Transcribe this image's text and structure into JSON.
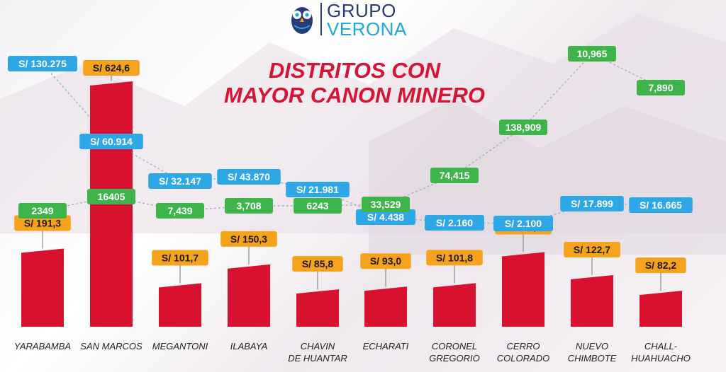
{
  "logo": {
    "line1": "GRUPO",
    "line2": "VERONA"
  },
  "title": {
    "line1": "DISTRITOS CON",
    "line2": "MAYOR CANON MINERO"
  },
  "colors": {
    "bar": "#d8122e",
    "bar_top": "#c4c4c4",
    "orange": "#f5a21c",
    "blue": "#2ea7e6",
    "green": "#3db54a",
    "title": "#d41535"
  },
  "chart_data": {
    "type": "bar",
    "categories": [
      [
        "YARABAMBA"
      ],
      [
        "SAN MARCOS"
      ],
      [
        "MEGANTONI"
      ],
      [
        "ILABAYA"
      ],
      [
        "CHAVIN",
        "DE HUANTAR"
      ],
      [
        "ECHARATI"
      ],
      [
        "CORONEL",
        "GREGORIO"
      ],
      [
        "CERRO",
        "COLORADO"
      ],
      [
        "NUEVO",
        "CHIMBOTE"
      ],
      [
        "CHALL-",
        "HUAHUACHO"
      ]
    ],
    "values": [
      191.3,
      624.6,
      101.7,
      150.3,
      85.8,
      93.0,
      101.8,
      182.3,
      122.7,
      82.2
    ],
    "value_labels": [
      "S/ 191,3",
      "S/ 624,6",
      "S/ 101,7",
      "S/ 150,3",
      "S/ 85,8",
      "S/ 93,0",
      "S/ 101,8",
      "S/ 182,3",
      "S/ 122,7",
      "S/ 82,2"
    ],
    "blue_labels": [
      "S/ 130.275",
      "S/ 60.914",
      "S/ 32.147",
      "S/ 43.870",
      "S/ 21.981",
      "S/ 4.438",
      "S/ 2.160",
      "S/ 2.100",
      "S/ 17.899",
      "S/ 16.665"
    ],
    "blue_values": [
      130275,
      60914,
      32147,
      43870,
      21981,
      4438,
      2160,
      2100,
      17899,
      16665
    ],
    "green_labels": [
      "2349",
      "16405",
      "7,439",
      "3,708",
      "6243",
      "33,529",
      "74,415",
      "138,909",
      "10,965",
      "7,890"
    ],
    "green_values": [
      2349,
      16405,
      7439,
      3708,
      6243,
      33529,
      74415,
      138909,
      10965,
      7890
    ]
  }
}
